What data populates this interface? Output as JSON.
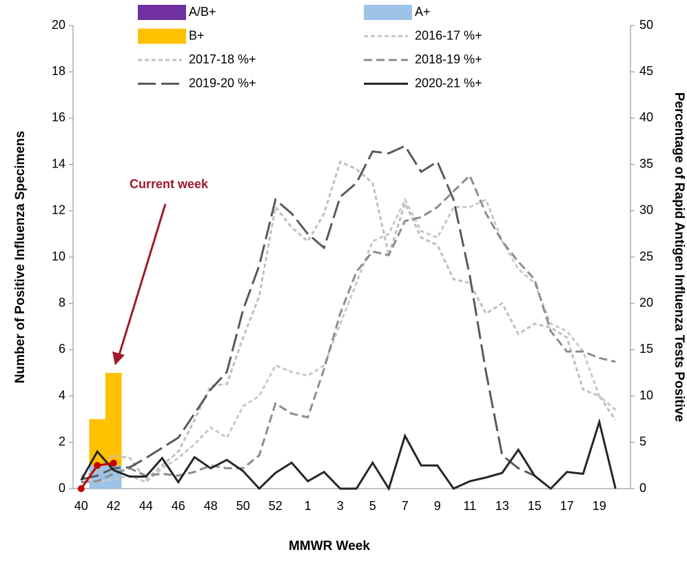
{
  "chart_data": {
    "type": "combo",
    "x_label": "MMWR Week",
    "y_label": "Number of Positive Influenza Specimens",
    "y2_label": "Percentage of Rapid Antigen Influenza Tests Positive",
    "categories": [
      "40",
      null,
      "42",
      null,
      "44",
      null,
      "46",
      null,
      "48",
      null,
      "50",
      null,
      "52",
      null,
      "1",
      null,
      "3",
      null,
      "5",
      null,
      "7",
      null,
      "9",
      null,
      "11",
      null,
      "13",
      null,
      "15",
      null,
      "17",
      null,
      "19",
      null
    ],
    "ylim": [
      0,
      20
    ],
    "yticks": [
      0,
      2,
      4,
      6,
      8,
      10,
      12,
      14,
      16,
      18,
      20
    ],
    "y2lim": [
      0,
      50
    ],
    "y2ticks": [
      0,
      5,
      10,
      15,
      20,
      25,
      30,
      35,
      40,
      45,
      50
    ],
    "annotations": [
      {
        "text": "Current week",
        "color": "#a0182b"
      }
    ],
    "series": [
      {
        "name": "A/B+",
        "type": "bar",
        "color": "#7030a0",
        "values": [
          0,
          0,
          0,
          null,
          null,
          null,
          null,
          null,
          null,
          null,
          null,
          null,
          null,
          null,
          null,
          null,
          null,
          null,
          null,
          null,
          null,
          null,
          null,
          null,
          null,
          null,
          null,
          null,
          null,
          null,
          null,
          null,
          null,
          null
        ]
      },
      {
        "name": "A+",
        "type": "bar",
        "color": "#9dc3e6",
        "values": [
          0,
          1,
          1,
          null,
          null,
          null,
          null,
          null,
          null,
          null,
          null,
          null,
          null,
          null,
          null,
          null,
          null,
          null,
          null,
          null,
          null,
          null,
          null,
          null,
          null,
          null,
          null,
          null,
          null,
          null,
          null,
          null,
          null,
          null
        ]
      },
      {
        "name": "B+",
        "type": "bar",
        "color": "#ffc000",
        "values": [
          0,
          2,
          4,
          null,
          null,
          null,
          null,
          null,
          null,
          null,
          null,
          null,
          null,
          null,
          null,
          null,
          null,
          null,
          null,
          null,
          null,
          null,
          null,
          null,
          null,
          null,
          null,
          null,
          null,
          null,
          null,
          null,
          null,
          null
        ]
      },
      {
        "name": "2016-17 %+",
        "type": "line",
        "axis": "y2",
        "color": "#c8c8c8",
        "dash": "6 4",
        "width": 3,
        "values": [
          1.3,
          0.7,
          1.0,
          1.4,
          0.7,
          2.2,
          3.3,
          4.8,
          6.6,
          5.5,
          8.9,
          10.0,
          13.3,
          12.6,
          12.2,
          13.3,
          17.8,
          22.2,
          26.7,
          27.5,
          31.2,
          27.8,
          27.1,
          30.4,
          30.4,
          31.2,
          26.7,
          23.7,
          22.2,
          17.8,
          17.0,
          14.8,
          10.0,
          8.5
        ]
      },
      {
        "name": "2017-18 %+",
        "type": "line",
        "axis": "y2",
        "color": "#bfbfbf",
        "dash": "6 4",
        "width": 3,
        "values": [
          1.4,
          1.8,
          3.6,
          3.3,
          1.0,
          2.5,
          4.0,
          7.4,
          11.1,
          11.3,
          16.3,
          20.8,
          30.4,
          28.2,
          26.7,
          29.7,
          35.3,
          34.5,
          33.0,
          25.2,
          30.8,
          27.1,
          26.3,
          22.6,
          22.2,
          18.9,
          20.0,
          16.7,
          17.8,
          17.4,
          16.3,
          10.7,
          10.0,
          7.4
        ]
      },
      {
        "name": "2018-19 %+",
        "type": "line",
        "axis": "y2",
        "color": "#8c8c8c",
        "dash": "12 6",
        "width": 3,
        "values": [
          0.7,
          0.8,
          1.6,
          2.2,
          1.4,
          1.6,
          1.4,
          1.8,
          2.5,
          2.2,
          2.2,
          3.6,
          9.2,
          8.1,
          7.7,
          12.9,
          18.9,
          23.4,
          25.6,
          25.2,
          28.9,
          29.3,
          30.4,
          32.1,
          33.8,
          29.7,
          26.7,
          24.5,
          22.6,
          17.0,
          14.8,
          14.8,
          14.1,
          13.7
        ]
      },
      {
        "name": "2019-20 %+",
        "type": "line",
        "axis": "y2",
        "color": "#595959",
        "dash": "26 8",
        "width": 3,
        "values": [
          1.0,
          1.4,
          2.2,
          2.3,
          3.3,
          4.4,
          5.5,
          8.1,
          10.7,
          12.6,
          19.3,
          24.1,
          31.2,
          29.7,
          27.5,
          26.0,
          31.5,
          33.0,
          36.4,
          36.2,
          37.0,
          34.2,
          35.3,
          31.2,
          23.0,
          12.6,
          3.6,
          2.2,
          1.4,
          null,
          null,
          null,
          null,
          null
        ]
      },
      {
        "name": "2020-21 %+",
        "type": "line",
        "axis": "y2",
        "color": "#262626",
        "width": 3,
        "values": [
          0.9,
          4.0,
          2.0,
          1.3,
          1.3,
          3.3,
          0.7,
          3.4,
          2.2,
          3.1,
          1.9,
          0,
          1.7,
          2.8,
          0.8,
          1.8,
          0,
          0,
          2.8,
          0,
          5.7,
          2.5,
          2.5,
          0,
          0.8,
          1.2,
          1.7,
          4.2,
          1.4,
          0,
          1.8,
          1.6,
          7.2,
          0
        ]
      },
      {
        "type": "line",
        "axis": "y2",
        "color": "#c00000",
        "width": 3,
        "markers": true,
        "values": [
          0,
          2.5,
          2.75,
          null,
          null,
          null,
          null,
          null,
          null,
          null,
          null,
          null,
          null,
          null,
          null,
          null,
          null,
          null,
          null,
          null,
          null,
          null,
          null,
          null,
          null,
          null,
          null,
          null,
          null,
          null,
          null,
          null,
          null,
          null
        ]
      }
    ]
  }
}
